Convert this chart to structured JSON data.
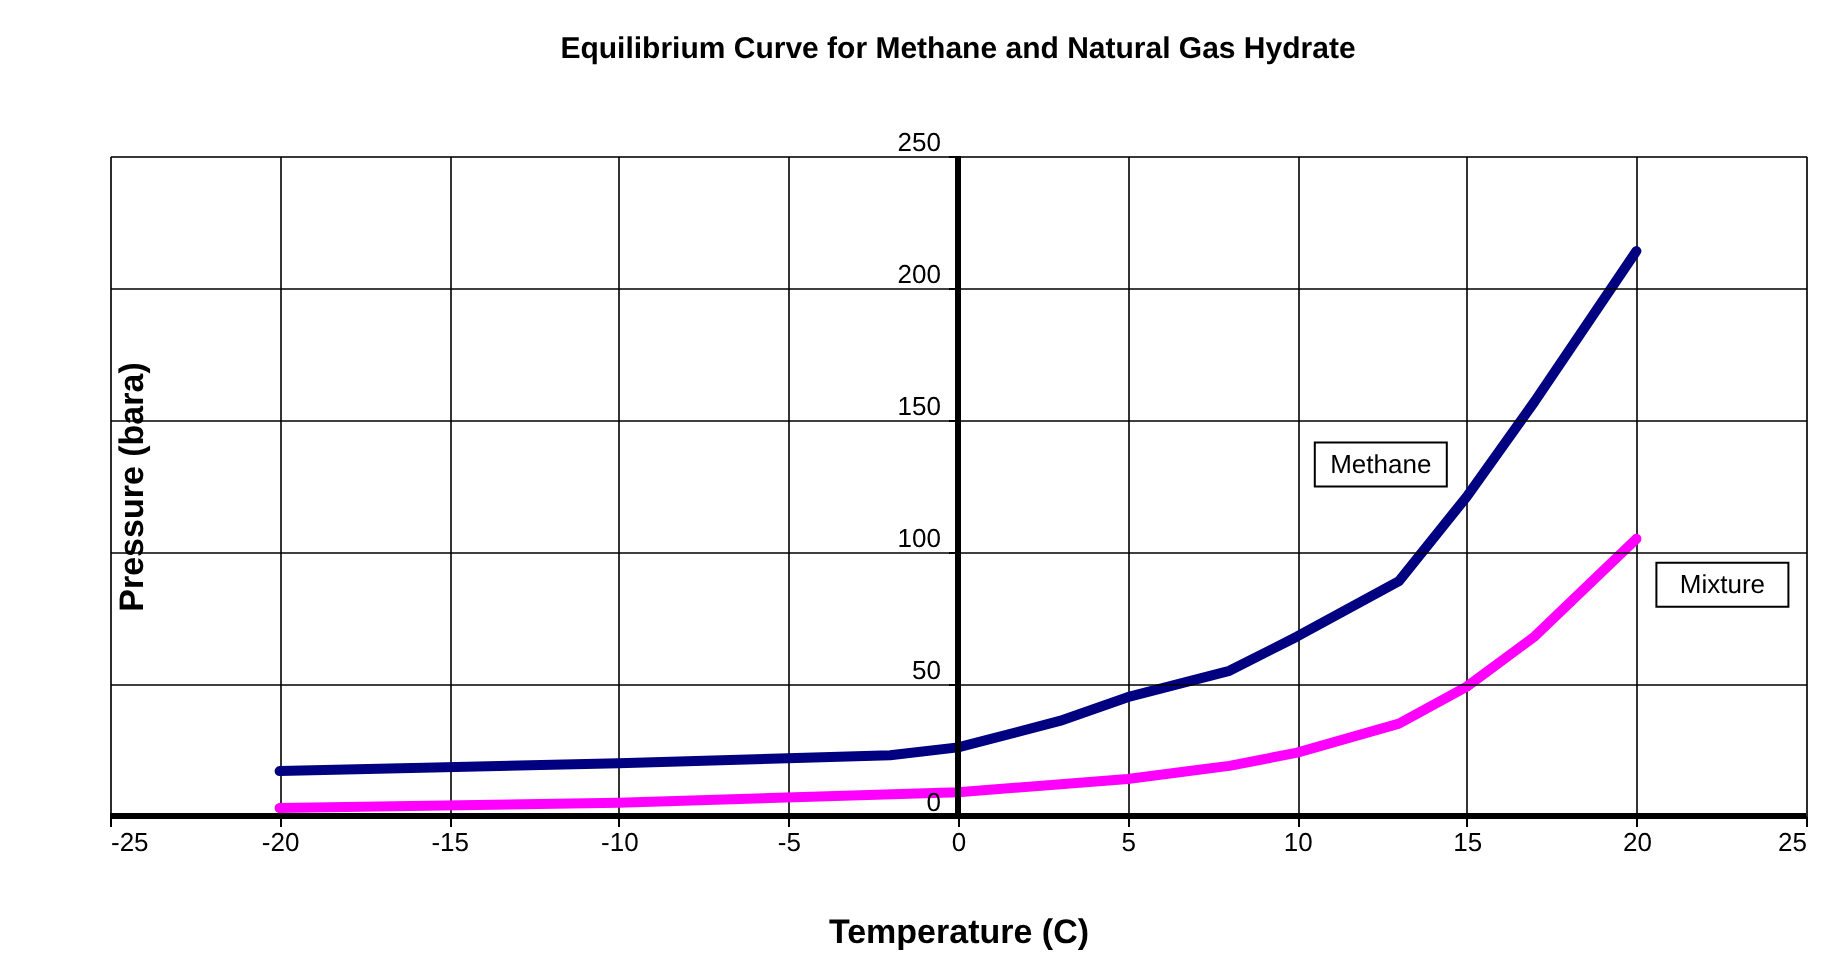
{
  "chart_data": {
    "type": "line",
    "title": "Equilibrium Curve for Methane and Natural Gas Hydrate",
    "xlabel": "Temperature (C)",
    "ylabel": "Pressure (bara)",
    "xlim": [
      -25,
      25
    ],
    "xticks": [
      -25,
      -20,
      -15,
      -10,
      -5,
      0,
      5,
      10,
      15,
      20,
      25
    ],
    "ylim": [
      0,
      250
    ],
    "yticks": [
      0,
      50,
      100,
      150,
      200,
      250
    ],
    "grid": true,
    "marker": "none",
    "line_style": "solid",
    "series": [
      {
        "name": "Methane",
        "color": "#000080",
        "x": [
          -20,
          -10,
          -2,
          0,
          3,
          5,
          8,
          10,
          13,
          15,
          17,
          20
        ],
        "values": [
          17,
          20,
          23,
          26,
          36,
          45,
          55,
          68,
          89,
          121,
          157,
          214
        ]
      },
      {
        "name": "Mixture",
        "color": "#ff00ff",
        "x": [
          -20,
          -10,
          0,
          5,
          8,
          10,
          13,
          15,
          17,
          20
        ],
        "values": [
          3,
          5,
          9,
          14,
          19,
          24,
          35,
          49,
          68,
          105
        ]
      }
    ]
  }
}
